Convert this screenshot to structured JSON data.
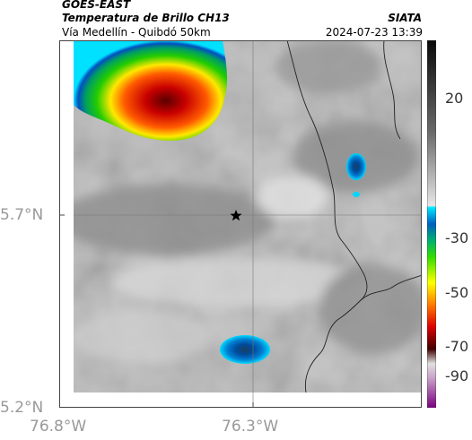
{
  "header": {
    "satellite": "GOES-EAST",
    "product": "Temperatura de Brillo CH13",
    "route": "Vía Medellín - Quibdó 50km",
    "agency": "SIATA",
    "timestamp": "2024-07-23 13:39"
  },
  "map": {
    "lat_labels": [
      "5.7°N",
      "5.2°N"
    ],
    "lon_labels": [
      "76.8°W",
      "76.3°W"
    ],
    "marker": "star",
    "marker_icon": "star-icon"
  },
  "colorbar": {
    "tick_labels": [
      "20",
      "-30",
      "-50",
      "-70",
      "-90"
    ]
  }
}
